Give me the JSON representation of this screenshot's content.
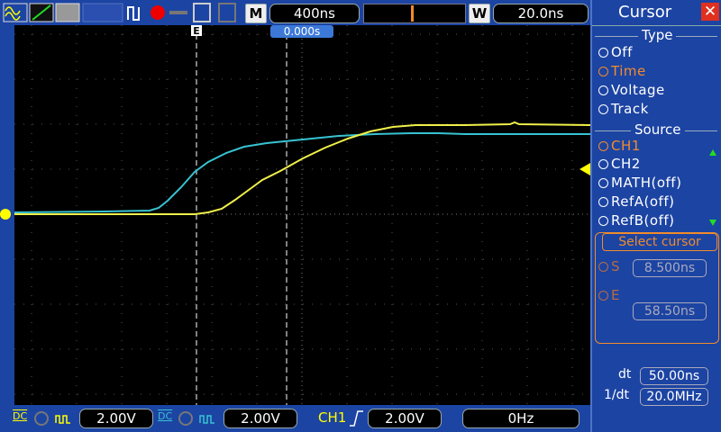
{
  "top_bar": {
    "timebase_mode": "M",
    "timebase": "400ns",
    "window_mode": "W",
    "window_timebase": "20.0ns"
  },
  "display": {
    "cursor_marker": "E",
    "trigger_position": "0.000s"
  },
  "bottom_bar": {
    "ch1_coupling": "DC",
    "ch1_scale": "2.00V",
    "ch2_coupling": "DC",
    "ch2_scale": "2.00V",
    "trigger_source": "CH1",
    "trigger_level": "2.00V",
    "frequency": "0Hz"
  },
  "menu": {
    "title": "Cursor",
    "type_label": "Type",
    "type_options": [
      "Off",
      "Time",
      "Voltage",
      "Track"
    ],
    "source_label": "Source",
    "source_options": [
      "CH1",
      "CH2",
      "MATH(off)",
      "RefA(off)",
      "RefB(off)"
    ],
    "select_label": "Select cursor",
    "cursors": [
      {
        "name": "S",
        "value": "8.500ns"
      },
      {
        "name": "E",
        "value": "58.50ns"
      }
    ],
    "dt_label": "dt",
    "dt": "50.00ns",
    "inv_dt_label": "1/dt",
    "inv_dt": "20.0MHz"
  }
}
